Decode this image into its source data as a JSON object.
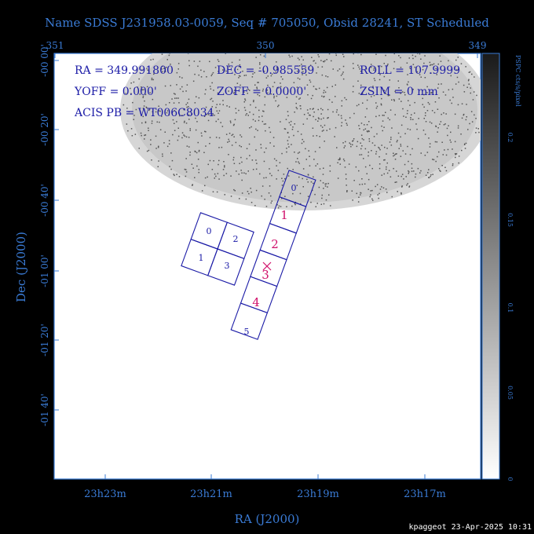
{
  "title": "Name SDSS J231958.03-0059, Seq # 705050, Obsid 28241, ST Scheduled",
  "info": {
    "ra": "RA = 349.991800",
    "dec": "DEC = -0.985559",
    "roll": "ROLL = 107.9999",
    "yoff": "YOFF = 0.000'",
    "zoff": "ZOFF = 0.0000'",
    "zsim": "ZSIM = 0 mm",
    "acis": "ACIS PB = WT006C8034"
  },
  "top_ticks": [
    "351",
    "350",
    "349"
  ],
  "left_ticks": [
    "-00 00'",
    "-00 20'",
    "-00 40'",
    "-01 00'",
    "-01 20'",
    "-01 40'"
  ],
  "bottom_ticks": [
    "23h23m",
    "23h21m",
    "23h19m",
    "23h17m"
  ],
  "xlabel": "RA (J2000)",
  "ylabel": "Dec (J2000)",
  "colorbar": {
    "label": "PSPC cts/s/pixel",
    "ticks": [
      "0.2",
      "0.15",
      "0.1",
      "0.05",
      "0"
    ]
  },
  "chips": {
    "i_array": [
      "0",
      "2",
      "1",
      "3"
    ],
    "s_array": [
      "0",
      "1",
      "2",
      "3",
      "4",
      "5"
    ]
  },
  "footer": "kpaggeot 23-Apr-2025 10:31"
}
